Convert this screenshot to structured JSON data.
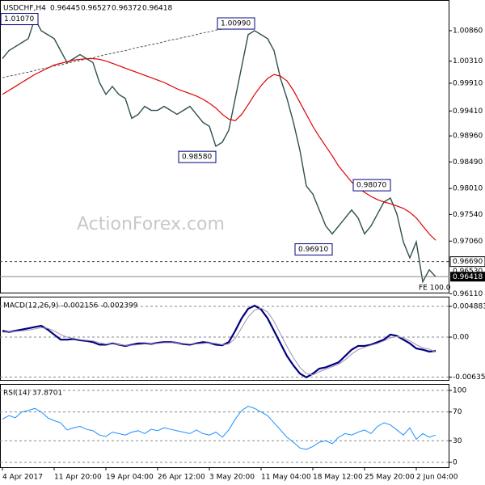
{
  "chart_data": [
    {
      "type": "line",
      "title": "USDCHF,H4",
      "ohlc": [
        0.96445,
        0.96527,
        0.96372,
        0.96418
      ],
      "watermark": "ActionForex.com",
      "fe_label": "FE 100.0",
      "ylim": [
        0.9613,
        1.0137
      ],
      "yticks": [
        {
          "value": 1.0086,
          "label": "1.00860"
        },
        {
          "value": 1.0031,
          "label": "1.00310"
        },
        {
          "value": 0.9991,
          "label": "0.99910"
        },
        {
          "value": 0.9941,
          "label": "0.99410"
        },
        {
          "value": 0.9896,
          "label": "0.98960"
        },
        {
          "value": 0.9849,
          "label": "0.98490"
        },
        {
          "value": 0.9801,
          "label": "0.98010"
        },
        {
          "value": 0.9754,
          "label": "0.97540"
        },
        {
          "value": 0.9706,
          "label": "0.97060"
        },
        {
          "value": 0.9611,
          "label": "0.96110"
        }
      ],
      "level": {
        "value": 0.9669,
        "label": "0.96690"
      },
      "fe_level": {
        "value": 0.9653,
        "label": "0.96530"
      },
      "current": {
        "value": 0.96418,
        "label": "0.96418"
      },
      "annotations": [
        {
          "x": 5,
          "value": 1.0107,
          "label": "1.01070"
        },
        {
          "x": 39,
          "value": 1.0099,
          "label": "1.00990"
        },
        {
          "x": 33,
          "value": 0.9858,
          "label": "0.98580"
        },
        {
          "x": 60,
          "value": 0.9807,
          "label": "0.98070"
        },
        {
          "x": 51,
          "value": 0.9691,
          "label": "0.96910"
        }
      ],
      "series": [
        {
          "color": "#2f4f4f",
          "width": 1.4,
          "values": [
            1.00356,
            1.005,
            1.00572,
            1.00644,
            1.00716,
            1.01076,
            1.0086,
            1.00788,
            1.00716,
            1.005,
            1.00284,
            1.00356,
            1.00428,
            1.00356,
            1.00284,
            0.99925,
            0.99709,
            0.99853,
            0.99709,
            0.99637,
            0.99277,
            0.99349,
            0.99493,
            0.99421,
            0.99421,
            0.99493,
            0.99421,
            0.99349,
            0.99421,
            0.99493,
            0.99349,
            0.99205,
            0.99133,
            0.98773,
            0.98845,
            0.99061,
            0.99637,
            1.00212,
            1.00788,
            1.0086,
            1.00788,
            1.00716,
            1.005,
            0.99997,
            0.99637,
            0.99205,
            0.98701,
            0.98054,
            0.9791,
            0.97622,
            0.97334,
            0.9719,
            0.97334,
            0.97478,
            0.97622,
            0.97478,
            0.9719,
            0.97334,
            0.9755,
            0.97766,
            0.97838,
            0.9755,
            0.97046,
            0.96758,
            0.97046,
            0.96326,
            0.96542,
            0.96418
          ]
        },
        {
          "color": "#e00000",
          "width": 1.2,
          "values": [
            0.99709,
            0.99781,
            0.99853,
            0.99925,
            0.99997,
            1.00069,
            1.00126,
            1.00184,
            1.00241,
            1.0027,
            1.00299,
            1.00328,
            1.00342,
            1.00356,
            1.00356,
            1.00342,
            1.00313,
            1.0027,
            1.00227,
            1.00184,
            1.0014,
            1.00097,
            1.00054,
            1.00011,
            0.99968,
            0.99925,
            0.99867,
            0.9981,
            0.99766,
            0.99723,
            0.9968,
            0.99622,
            0.9955,
            0.99464,
            0.99349,
            0.99263,
            0.99234,
            0.99349,
            0.99522,
            0.99709,
            0.99867,
            0.99997,
            1.00069,
            1.0004,
            0.99953,
            0.99781,
            0.99565,
            0.99349,
            0.99133,
            0.98946,
            0.98773,
            0.98601,
            0.98414,
            0.9827,
            0.98126,
            0.98025,
            0.97939,
            0.97867,
            0.97809,
            0.97766,
            0.97737,
            0.97694,
            0.97651,
            0.97579,
            0.97478,
            0.97334,
            0.9719,
            0.97075
          ]
        },
        {
          "color": "#555555",
          "width": 1,
          "dash": true,
          "values": [
            1.0001,
            1.0004,
            1.0006,
            1.0009,
            1.0011,
            1.0014,
            1.0017,
            1.0019,
            1.0022,
            1.0024,
            1.0027,
            1.003,
            1.0032,
            1.0035,
            1.0037,
            1.004,
            1.0043,
            1.0045,
            1.0048,
            1.005,
            1.0053,
            1.0056,
            1.0058,
            1.0061,
            1.0063,
            1.0066,
            1.0069,
            1.0071,
            1.0074,
            1.0076,
            1.0079,
            1.0082,
            1.0084,
            1.0087,
            1.0089,
            1.0092,
            1.0095,
            1.0097,
            1.01,
            null,
            null,
            null,
            null,
            null,
            null,
            null,
            null,
            null,
            null,
            null,
            null,
            null,
            null,
            null,
            null,
            null,
            null,
            null,
            null,
            null,
            null,
            null,
            null,
            null,
            null,
            null,
            null,
            null
          ]
        }
      ]
    },
    {
      "type": "line",
      "title": "MACD(12,26,9) -0.002156 -0.002399",
      "ylim": [
        -0.0068,
        0.0063
      ],
      "yticks": [
        0.004883,
        {
          "value": 0,
          "label": "0.00"
        },
        -0.006354
      ],
      "series": [
        {
          "color": "#000080",
          "width": 2.2,
          "values": [
            0.001,
            0.0008,
            0.001,
            0.0012,
            0.0014,
            0.0016,
            0.0018,
            0.0012,
            0.0004,
            -0.0004,
            -0.0004,
            -0.0003,
            -0.0005,
            -0.0006,
            -0.0008,
            -0.0012,
            -0.0012,
            -0.001,
            -0.0012,
            -0.0014,
            -0.0012,
            -0.001,
            -0.001,
            -0.0011,
            -0.0009,
            -0.0008,
            -0.0008,
            -0.0009,
            -0.0011,
            -0.0012,
            -0.001,
            -0.0008,
            -0.0009,
            -0.0012,
            -0.0013,
            -0.0008,
            0.001,
            0.003,
            0.0045,
            0.005,
            0.0044,
            0.003,
            0.001,
            -0.001,
            -0.003,
            -0.0045,
            -0.0058,
            -0.0064,
            -0.0058,
            -0.005,
            -0.0048,
            -0.0044,
            -0.004,
            -0.003,
            -0.002,
            -0.0014,
            -0.0014,
            -0.0012,
            -0.0008,
            -0.0004,
            0.0004,
            0.0002,
            -0.0004,
            -0.001,
            -0.0018,
            -0.002,
            -0.0023,
            -0.0022
          ]
        },
        {
          "color": "#a090b0",
          "width": 1,
          "values": [
            0.0008,
            0.0008,
            0.0009,
            0.001,
            0.0011,
            0.0013,
            0.0015,
            0.0014,
            0.001,
            0.0004,
            0.0,
            -0.0002,
            -0.0004,
            -0.0005,
            -0.0006,
            -0.0009,
            -0.0011,
            -0.0011,
            -0.0012,
            -0.0013,
            -0.0013,
            -0.0012,
            -0.0011,
            -0.0011,
            -0.001,
            -0.0009,
            -0.0009,
            -0.0009,
            -0.001,
            -0.0011,
            -0.0011,
            -0.001,
            -0.0009,
            -0.001,
            -0.0012,
            -0.0011,
            -0.0002,
            0.0015,
            0.0032,
            0.0043,
            0.0046,
            0.004,
            0.0025,
            0.0005,
            -0.0015,
            -0.0033,
            -0.0048,
            -0.0058,
            -0.006,
            -0.0055,
            -0.0051,
            -0.0047,
            -0.0043,
            -0.0036,
            -0.0027,
            -0.002,
            -0.0016,
            -0.0013,
            -0.001,
            -0.0006,
            -0.0001,
            0.0001,
            -0.0001,
            -0.0006,
            -0.0012,
            -0.0017,
            -0.0019,
            -0.0024
          ]
        }
      ]
    },
    {
      "type": "line",
      "title": "RSI(14) 37.8701",
      "ylim": [
        -6.7,
        107.8
      ],
      "yticks": [
        100,
        70,
        30,
        0
      ],
      "categories": [
        "4 Apr 2017",
        null,
        null,
        null,
        null,
        null,
        null,
        null,
        "11 Apr 20:00",
        null,
        null,
        null,
        null,
        null,
        null,
        null,
        "19 Apr 04:00",
        null,
        null,
        null,
        null,
        null,
        null,
        null,
        "26 Apr 12:00",
        null,
        null,
        null,
        null,
        null,
        null,
        null,
        "3 May 20:00",
        null,
        null,
        null,
        null,
        null,
        null,
        null,
        "11 May 04:00",
        null,
        null,
        null,
        null,
        null,
        null,
        null,
        "18 May 12:00",
        null,
        null,
        null,
        null,
        null,
        null,
        null,
        "25 May 20:00",
        null,
        null,
        null,
        null,
        null,
        null,
        null,
        "2 Jun 04:00",
        null,
        null,
        null
      ],
      "series": [
        {
          "color": "#1e90ff",
          "width": 1,
          "values": [
            60,
            65,
            62,
            70,
            72,
            75,
            70,
            62,
            58,
            55,
            45,
            48,
            50,
            46,
            44,
            38,
            36,
            42,
            40,
            38,
            42,
            44,
            40,
            46,
            44,
            48,
            46,
            44,
            42,
            40,
            45,
            40,
            38,
            42,
            35,
            45,
            60,
            72,
            78,
            75,
            70,
            65,
            55,
            45,
            35,
            28,
            20,
            18,
            22,
            28,
            30,
            26,
            35,
            40,
            38,
            42,
            45,
            40,
            50,
            55,
            52,
            45,
            38,
            48,
            32,
            40,
            35,
            38
          ]
        }
      ]
    }
  ]
}
